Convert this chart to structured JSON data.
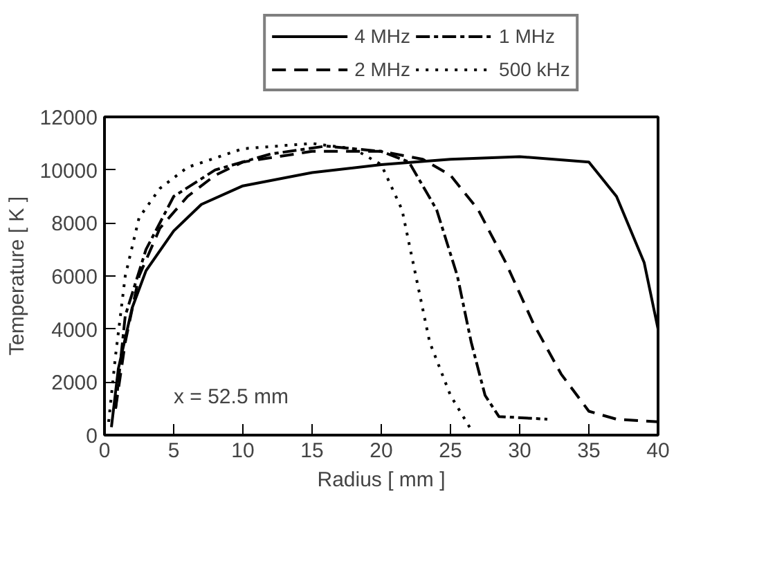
{
  "chart_data": {
    "type": "line",
    "xlabel": "Radius [ mm ]",
    "ylabel": "Temperature [ K ]",
    "xlim": [
      0,
      40
    ],
    "ylim": [
      0,
      12000
    ],
    "xticks": [
      0,
      5,
      10,
      15,
      20,
      25,
      30,
      35,
      40
    ],
    "yticks": [
      0,
      2000,
      4000,
      6000,
      8000,
      10000,
      12000
    ],
    "grid": false,
    "legend": "top",
    "annotations": [
      "x = 52.5 mm"
    ],
    "series": [
      {
        "name": "4 MHz",
        "color": "#000000",
        "line_style": "solid",
        "x": [
          0.5,
          1,
          2,
          3,
          5,
          7,
          10,
          15,
          20,
          25,
          30,
          35,
          37,
          39,
          40
        ],
        "values": [
          300,
          2500,
          4800,
          6200,
          7700,
          8700,
          9400,
          9900,
          10200,
          10400,
          10500,
          10300,
          9000,
          6500,
          4000
        ]
      },
      {
        "name": "2 MHz",
        "color": "#000000",
        "line_style": "dashed",
        "x": [
          0.8,
          1.5,
          2.5,
          4,
          6,
          8,
          10,
          15,
          20,
          23,
          25,
          27,
          29,
          31,
          33,
          35,
          37,
          40
        ],
        "values": [
          1000,
          3500,
          6000,
          7800,
          9000,
          9800,
          10300,
          10700,
          10700,
          10400,
          9800,
          8500,
          6500,
          4200,
          2300,
          900,
          600,
          500
        ]
      },
      {
        "name": "1 MHz",
        "color": "#000000",
        "line_style": "dashdot",
        "x": [
          0.8,
          1.5,
          3,
          5,
          8,
          12,
          16,
          20,
          22,
          24,
          25.5,
          26.5,
          27.5,
          28.5,
          32
        ],
        "values": [
          1000,
          4500,
          7000,
          9000,
          10000,
          10600,
          10900,
          10700,
          10300,
          8500,
          6000,
          3500,
          1500,
          700,
          600
        ]
      },
      {
        "name": "500 kHz",
        "color": "#000000",
        "line_style": "dotted",
        "x": [
          0.3,
          0.8,
          1.5,
          2.5,
          4,
          6,
          10,
          15,
          18,
          20,
          21.5,
          22.5,
          23.5,
          25,
          26.5
        ],
        "values": [
          500,
          3000,
          6000,
          8200,
          9300,
          10100,
          10800,
          11000,
          10800,
          10200,
          8500,
          6000,
          3500,
          1500,
          200
        ]
      }
    ]
  }
}
